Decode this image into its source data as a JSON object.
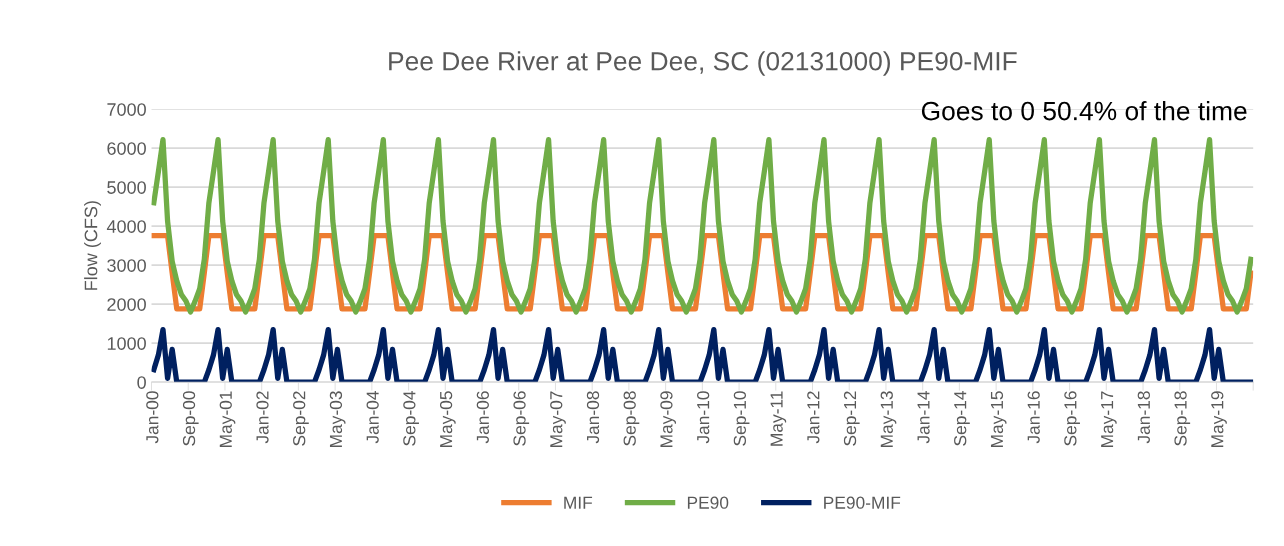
{
  "chart_data": {
    "type": "line",
    "title": "Pee Dee River at Pee Dee, SC (02131000) PE90-MIF",
    "ylabel": "Flow (CFS)",
    "categories": [
      "Jan-00",
      null,
      null,
      null,
      null,
      null,
      null,
      null,
      "Sep-00",
      null,
      null,
      null,
      null,
      null,
      null,
      null,
      "May-01",
      null,
      null,
      null,
      null,
      null,
      null,
      null,
      "Jan-02",
      null,
      null,
      null,
      null,
      null,
      null,
      null,
      "Sep-02",
      null,
      null,
      null,
      null,
      null,
      null,
      null,
      "May-03",
      null,
      null,
      null,
      null,
      null,
      null,
      null,
      "Jan-04",
      null,
      null,
      null,
      null,
      null,
      null,
      null,
      "Sep-04",
      null,
      null,
      null,
      null,
      null,
      null,
      null,
      "May-05",
      null,
      null,
      null,
      null,
      null,
      null,
      null,
      "Jan-06",
      null,
      null,
      null,
      null,
      null,
      null,
      null,
      "Sep-06",
      null,
      null,
      null,
      null,
      null,
      null,
      null,
      "May-07",
      null,
      null,
      null,
      null,
      null,
      null,
      null,
      "Jan-08",
      null,
      null,
      null,
      null,
      null,
      null,
      null,
      "Sep-08",
      null,
      null,
      null,
      null,
      null,
      null,
      null,
      "May-09",
      null,
      null,
      null,
      null,
      null,
      null,
      null,
      "Jan-10",
      null,
      null,
      null,
      null,
      null,
      null,
      null,
      "Sep-10",
      null,
      null,
      null,
      null,
      null,
      null,
      null,
      "May-11",
      null,
      null,
      null,
      null,
      null,
      null,
      null,
      "Jan-12",
      null,
      null,
      null,
      null,
      null,
      null,
      null,
      "Sep-12",
      null,
      null,
      null,
      null,
      null,
      null,
      null,
      "May-13",
      null,
      null,
      null,
      null,
      null,
      null,
      null,
      "Jan-14",
      null,
      null,
      null,
      null,
      null,
      null,
      null,
      "Sep-14",
      null,
      null,
      null,
      null,
      null,
      null,
      null,
      "May-15",
      null,
      null,
      null,
      null,
      null,
      null,
      null,
      "Jan-16",
      null,
      null,
      null,
      null,
      null,
      null,
      null,
      "Sep-16",
      null,
      null,
      null,
      null,
      null,
      null,
      null,
      "May-17",
      null,
      null,
      null,
      null,
      null,
      null,
      null,
      "Jan-18",
      null,
      null,
      null,
      null,
      null,
      null,
      null,
      "Sep-18",
      null,
      null,
      null,
      null,
      null,
      null,
      null,
      "May-19",
      null,
      null,
      null,
      null,
      null,
      null,
      null
    ],
    "series": [
      {
        "name": "MIF",
        "color": "#ed7d31",
        "values": [
          3760,
          3760,
          3760,
          3760,
          2800,
          1880,
          1880,
          1880,
          1880,
          1880,
          1880,
          2800,
          3760,
          3760,
          3760,
          3760,
          2800,
          1880,
          1880,
          1880,
          1880,
          1880,
          1880,
          2800,
          3760,
          3760,
          3760,
          3760,
          2800,
          1880,
          1880,
          1880,
          1880,
          1880,
          1880,
          2800,
          3760,
          3760,
          3760,
          3760,
          2800,
          1880,
          1880,
          1880,
          1880,
          1880,
          1880,
          2800,
          3760,
          3760,
          3760,
          3760,
          2800,
          1880,
          1880,
          1880,
          1880,
          1880,
          1880,
          2800,
          3760,
          3760,
          3760,
          3760,
          2800,
          1880,
          1880,
          1880,
          1880,
          1880,
          1880,
          2800,
          3760,
          3760,
          3760,
          3760,
          2800,
          1880,
          1880,
          1880,
          1880,
          1880,
          1880,
          2800,
          3760,
          3760,
          3760,
          3760,
          2800,
          1880,
          1880,
          1880,
          1880,
          1880,
          1880,
          2800,
          3760,
          3760,
          3760,
          3760,
          2800,
          1880,
          1880,
          1880,
          1880,
          1880,
          1880,
          2800,
          3760,
          3760,
          3760,
          3760,
          2800,
          1880,
          1880,
          1880,
          1880,
          1880,
          1880,
          2800,
          3760,
          3760,
          3760,
          3760,
          2800,
          1880,
          1880,
          1880,
          1880,
          1880,
          1880,
          2800,
          3760,
          3760,
          3760,
          3760,
          2800,
          1880,
          1880,
          1880,
          1880,
          1880,
          1880,
          2800,
          3760,
          3760,
          3760,
          3760,
          2800,
          1880,
          1880,
          1880,
          1880,
          1880,
          1880,
          2800,
          3760,
          3760,
          3760,
          3760,
          2800,
          1880,
          1880,
          1880,
          1880,
          1880,
          1880,
          2800,
          3760,
          3760,
          3760,
          3760,
          2800,
          1880,
          1880,
          1880,
          1880,
          1880,
          1880,
          2800,
          3760,
          3760,
          3760,
          3760,
          2800,
          1880,
          1880,
          1880,
          1880,
          1880,
          1880,
          2800,
          3760,
          3760,
          3760,
          3760,
          2800,
          1880,
          1880,
          1880,
          1880,
          1880,
          1880,
          2800,
          3760,
          3760,
          3760,
          3760,
          2800,
          1880,
          1880,
          1880,
          1880,
          1880,
          1880,
          2800,
          3760,
          3760,
          3760,
          3760,
          2800,
          1880,
          1880,
          1880,
          1880,
          1880,
          1880,
          2800,
          3760,
          3760,
          3760,
          3760,
          2800,
          1880,
          1880,
          1880,
          1880,
          1880,
          1880,
          2800
        ]
      },
      {
        "name": "PE90",
        "color": "#70ad47",
        "values": [
          4600,
          5400,
          6220,
          4130,
          3100,
          2600,
          2250,
          2080,
          1800,
          2080,
          2400,
          3150,
          4600,
          5400,
          6220,
          4130,
          3100,
          2600,
          2250,
          2080,
          1800,
          2080,
          2400,
          3150,
          4600,
          5400,
          6220,
          4130,
          3100,
          2600,
          2250,
          2080,
          1800,
          2080,
          2400,
          3150,
          4600,
          5400,
          6220,
          4130,
          3100,
          2600,
          2250,
          2080,
          1800,
          2080,
          2400,
          3150,
          4600,
          5400,
          6220,
          4130,
          3100,
          2600,
          2250,
          2080,
          1800,
          2080,
          2400,
          3150,
          4600,
          5400,
          6220,
          4130,
          3100,
          2600,
          2250,
          2080,
          1800,
          2080,
          2400,
          3150,
          4600,
          5400,
          6220,
          4130,
          3100,
          2600,
          2250,
          2080,
          1800,
          2080,
          2400,
          3150,
          4600,
          5400,
          6220,
          4130,
          3100,
          2600,
          2250,
          2080,
          1800,
          2080,
          2400,
          3150,
          4600,
          5400,
          6220,
          4130,
          3100,
          2600,
          2250,
          2080,
          1800,
          2080,
          2400,
          3150,
          4600,
          5400,
          6220,
          4130,
          3100,
          2600,
          2250,
          2080,
          1800,
          2080,
          2400,
          3150,
          4600,
          5400,
          6220,
          4130,
          3100,
          2600,
          2250,
          2080,
          1800,
          2080,
          2400,
          3150,
          4600,
          5400,
          6220,
          4130,
          3100,
          2600,
          2250,
          2080,
          1800,
          2080,
          2400,
          3150,
          4600,
          5400,
          6220,
          4130,
          3100,
          2600,
          2250,
          2080,
          1800,
          2080,
          2400,
          3150,
          4600,
          5400,
          6220,
          4130,
          3100,
          2600,
          2250,
          2080,
          1800,
          2080,
          2400,
          3150,
          4600,
          5400,
          6220,
          4130,
          3100,
          2600,
          2250,
          2080,
          1800,
          2080,
          2400,
          3150,
          4600,
          5400,
          6220,
          4130,
          3100,
          2600,
          2250,
          2080,
          1800,
          2080,
          2400,
          3150,
          4600,
          5400,
          6220,
          4130,
          3100,
          2600,
          2250,
          2080,
          1800,
          2080,
          2400,
          3150,
          4600,
          5400,
          6220,
          4130,
          3100,
          2600,
          2250,
          2080,
          1800,
          2080,
          2400,
          3150,
          4600,
          5400,
          6220,
          4130,
          3100,
          2600,
          2250,
          2080,
          1800,
          2080,
          2400,
          3150,
          4600,
          5400,
          6220,
          4130,
          3100,
          2600,
          2250,
          2080,
          1800,
          2080,
          2400,
          3150
        ]
      },
      {
        "name": "PE90-MIF",
        "color": "#002060",
        "values": [
          320,
          700,
          1350,
          100,
          840,
          0,
          0,
          0,
          0,
          0,
          0,
          0,
          320,
          700,
          1350,
          100,
          840,
          0,
          0,
          0,
          0,
          0,
          0,
          0,
          320,
          700,
          1350,
          100,
          840,
          0,
          0,
          0,
          0,
          0,
          0,
          0,
          320,
          700,
          1350,
          100,
          840,
          0,
          0,
          0,
          0,
          0,
          0,
          0,
          320,
          700,
          1350,
          100,
          840,
          0,
          0,
          0,
          0,
          0,
          0,
          0,
          320,
          700,
          1350,
          100,
          840,
          0,
          0,
          0,
          0,
          0,
          0,
          0,
          320,
          700,
          1350,
          100,
          840,
          0,
          0,
          0,
          0,
          0,
          0,
          0,
          320,
          700,
          1350,
          100,
          840,
          0,
          0,
          0,
          0,
          0,
          0,
          0,
          320,
          700,
          1350,
          100,
          840,
          0,
          0,
          0,
          0,
          0,
          0,
          0,
          320,
          700,
          1350,
          100,
          840,
          0,
          0,
          0,
          0,
          0,
          0,
          0,
          320,
          700,
          1350,
          100,
          840,
          0,
          0,
          0,
          0,
          0,
          0,
          0,
          320,
          700,
          1350,
          100,
          840,
          0,
          0,
          0,
          0,
          0,
          0,
          0,
          320,
          700,
          1350,
          100,
          840,
          0,
          0,
          0,
          0,
          0,
          0,
          0,
          320,
          700,
          1350,
          100,
          840,
          0,
          0,
          0,
          0,
          0,
          0,
          0,
          320,
          700,
          1350,
          100,
          840,
          0,
          0,
          0,
          0,
          0,
          0,
          0,
          320,
          700,
          1350,
          100,
          840,
          0,
          0,
          0,
          0,
          0,
          0,
          0,
          320,
          700,
          1350,
          100,
          840,
          0,
          0,
          0,
          0,
          0,
          0,
          0,
          320,
          700,
          1350,
          100,
          840,
          0,
          0,
          0,
          0,
          0,
          0,
          0,
          320,
          700,
          1350,
          100,
          840,
          0,
          0,
          0,
          0,
          0,
          0,
          0,
          320,
          700,
          1350,
          100,
          840,
          0,
          0,
          0,
          0,
          0,
          0,
          0
        ]
      }
    ],
    "ylim": [
      0,
      7000
    ],
    "yticks": [
      0,
      1000,
      2000,
      3000,
      4000,
      5000,
      6000,
      7000
    ],
    "grid": "y",
    "legend": "bottom",
    "annotations": [
      "Goes to 0 50.4% of the time"
    ]
  }
}
